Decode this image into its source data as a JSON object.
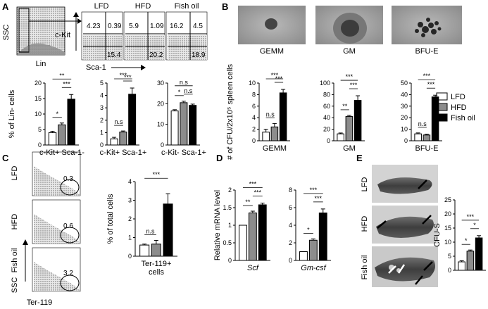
{
  "panels": {
    "A": {
      "label": "A",
      "gate_axes": {
        "y": "SSC",
        "x": "Lin"
      },
      "diet_titles": [
        "LFD",
        "HFD",
        "Fish oil"
      ],
      "ckit_axis": "c-Kit",
      "sca1_axis": "Sca-1",
      "quadrant_values": [
        {
          "q1": "4.23",
          "q2": "0.39",
          "q4": "15.4"
        },
        {
          "q1": "5.9",
          "q2": "1.09",
          "q4": "20.2"
        },
        {
          "q1": "16.2",
          "q2": "4.5",
          "q4": "18.9"
        }
      ]
    },
    "B": {
      "label": "B",
      "colony_titles": [
        "GEMM",
        "GM",
        "BFU-E"
      ],
      "legend": [
        "LFD",
        "HFD",
        "Fish oil"
      ]
    },
    "C": {
      "label": "C",
      "row_labels": [
        "LFD",
        "HFD",
        "Fish oil"
      ],
      "gate_values": [
        "0.3",
        "0.6",
        "3.2"
      ],
      "axis_y": "SSC",
      "axis_x": "Ter-119"
    },
    "D": {
      "label": "D"
    },
    "E": {
      "label": "E",
      "row_labels": [
        "LFD",
        "HFD",
        "Fish oil"
      ]
    }
  },
  "significance_labels": {
    "a1": [
      "*",
      "**",
      "***"
    ],
    "a2": [
      "n.s",
      "***",
      "***"
    ],
    "a3": [
      "*",
      "n.s",
      "n.s"
    ],
    "b1": [
      "n.s",
      "***",
      "***"
    ],
    "b2": [
      "***",
      "**",
      "***"
    ],
    "b3": [
      "n.s",
      "***",
      "***"
    ],
    "c": [
      "n.s",
      "***"
    ],
    "d1": [
      "**",
      "***",
      "***"
    ],
    "d2": [
      "*",
      "***",
      "***"
    ],
    "e": [
      "*",
      "*",
      "***"
    ]
  },
  "chart_data": [
    {
      "id": "a1",
      "type": "bar",
      "ylabel": "% of Lin- cells",
      "categories": [
        "c-Kit+ Sca-1-"
      ],
      "series": [
        {
          "name": "LFD",
          "values": [
            4
          ]
        },
        {
          "name": "HFD",
          "values": [
            6.5
          ]
        },
        {
          "name": "Fish oil",
          "values": [
            14.8
          ]
        }
      ],
      "errors": [
        0.4,
        0.6,
        1.5
      ],
      "ylim": [
        0,
        20
      ],
      "yticks": [
        0,
        5,
        10,
        15,
        20
      ]
    },
    {
      "id": "a2",
      "type": "bar",
      "ylabel": "",
      "categories": [
        "c-Kit+ Sca-1+"
      ],
      "series": [
        {
          "name": "LFD",
          "values": [
            0.5
          ]
        },
        {
          "name": "HFD",
          "values": [
            1.05
          ]
        },
        {
          "name": "Fish oil",
          "values": [
            4.1
          ]
        }
      ],
      "errors": [
        0.12,
        0.08,
        0.5
      ],
      "ylim": [
        0,
        5
      ],
      "yticks": [
        0,
        1,
        2,
        3,
        4,
        5
      ]
    },
    {
      "id": "a3",
      "type": "bar",
      "ylabel": "",
      "categories": [
        "c-Kit- Sca-1+"
      ],
      "series": [
        {
          "name": "LFD",
          "values": [
            16.5
          ]
        },
        {
          "name": "HFD",
          "values": [
            20.5
          ]
        },
        {
          "name": "Fish oil",
          "values": [
            19.2
          ]
        }
      ],
      "errors": [
        0.6,
        0.7,
        0.6
      ],
      "ylim": [
        0,
        30
      ],
      "yticks": [
        0,
        10,
        20,
        30
      ]
    },
    {
      "id": "b1",
      "type": "bar",
      "ylabel": "# of CFU/2x10⁵ spleen cells",
      "categories": [
        "GEMM"
      ],
      "series": [
        {
          "name": "LFD",
          "values": [
            1.5
          ]
        },
        {
          "name": "HFD",
          "values": [
            2.4
          ]
        },
        {
          "name": "Fish oil",
          "values": [
            8.3
          ]
        }
      ],
      "errors": [
        0.5,
        0.6,
        0.6
      ],
      "ylim": [
        0,
        10
      ],
      "yticks": [
        0,
        2,
        4,
        6,
        8,
        10
      ]
    },
    {
      "id": "b2",
      "type": "bar",
      "ylabel": "",
      "categories": [
        "GM"
      ],
      "series": [
        {
          "name": "LFD",
          "values": [
            12
          ]
        },
        {
          "name": "HFD",
          "values": [
            42
          ]
        },
        {
          "name": "Fish oil",
          "values": [
            70
          ]
        }
      ],
      "errors": [
        1.5,
        2,
        8
      ],
      "ylim": [
        0,
        100
      ],
      "yticks": [
        0,
        20,
        40,
        60,
        80,
        100
      ]
    },
    {
      "id": "b3",
      "type": "bar",
      "ylabel": "",
      "categories": [
        "BFU-E"
      ],
      "series": [
        {
          "name": "LFD",
          "values": [
            6
          ]
        },
        {
          "name": "HFD",
          "values": [
            5
          ]
        },
        {
          "name": "Fish oil",
          "values": [
            38
          ]
        }
      ],
      "errors": [
        0.8,
        0.7,
        1.5
      ],
      "ylim": [
        0,
        50
      ],
      "yticks": [
        0,
        10,
        20,
        30,
        40,
        50
      ]
    },
    {
      "id": "c",
      "type": "bar",
      "ylabel": "% of total cells",
      "categories": [
        "Ter-119+ cells"
      ],
      "series": [
        {
          "name": "LFD",
          "values": [
            0.6
          ]
        },
        {
          "name": "HFD",
          "values": [
            0.65
          ]
        },
        {
          "name": "Fish oil",
          "values": [
            2.8
          ]
        }
      ],
      "errors": [
        0.05,
        0.2,
        0.55
      ],
      "ylim": [
        0,
        4
      ],
      "yticks": [
        0,
        1,
        2,
        3,
        4
      ]
    },
    {
      "id": "d1",
      "type": "bar",
      "ylabel": "Relative mRNA level",
      "categories": [
        "Scf"
      ],
      "series": [
        {
          "name": "LFD",
          "values": [
            1.0
          ]
        },
        {
          "name": "HFD",
          "values": [
            1.35
          ]
        },
        {
          "name": "Fish oil",
          "values": [
            1.58
          ]
        }
      ],
      "errors": [
        0.0,
        0.05,
        0.05
      ],
      "ylim": [
        0,
        2
      ],
      "yticks": [
        0,
        0.5,
        1,
        1.5,
        2
      ]
    },
    {
      "id": "d2",
      "type": "bar",
      "ylabel": "",
      "categories": [
        "Gm-csf"
      ],
      "series": [
        {
          "name": "LFD",
          "values": [
            1.0
          ]
        },
        {
          "name": "HFD",
          "values": [
            2.3
          ]
        },
        {
          "name": "Fish oil",
          "values": [
            5.4
          ]
        }
      ],
      "errors": [
        0.0,
        0.15,
        0.45
      ],
      "ylim": [
        0,
        8
      ],
      "yticks": [
        0,
        2,
        4,
        6,
        8
      ]
    },
    {
      "id": "e",
      "type": "bar",
      "ylabel": "CFU-S",
      "categories": [
        ""
      ],
      "series": [
        {
          "name": "LFD",
          "values": [
            3
          ]
        },
        {
          "name": "HFD",
          "values": [
            6.8
          ]
        },
        {
          "name": "Fish oil",
          "values": [
            11.5
          ]
        }
      ],
      "errors": [
        0.4,
        0.4,
        0.8
      ],
      "ylim": [
        0,
        25
      ],
      "yticks": [
        0,
        5,
        10,
        15,
        20,
        25
      ]
    }
  ],
  "colors": {
    "lfd": "#ffffff",
    "hfd": "#8c8c8c",
    "fishoil": "#000000",
    "axis": "#000000"
  }
}
